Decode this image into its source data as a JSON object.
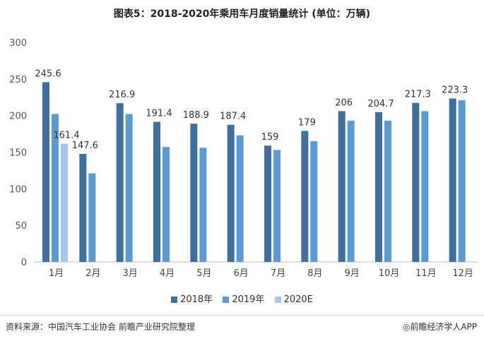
{
  "title": "图表5：2018-2020年乘用车月度销量统计 (单位：万辆)",
  "source": "资料来源：中国汽车工业协会 前瞻产业研究院整理",
  "brand": "◎前瞻经济学人APP",
  "chart_data": {
    "type": "bar",
    "categories": [
      "1月",
      "2月",
      "3月",
      "4月",
      "5月",
      "6月",
      "7月",
      "8月",
      "9月",
      "10月",
      "11月",
      "12月"
    ],
    "series": [
      {
        "name": "2018年",
        "color": "#3f6f9c",
        "values": [
          245.6,
          147.6,
          216.9,
          191.4,
          188.9,
          187.4,
          159,
          179,
          206,
          204.7,
          217.3,
          223.3
        ],
        "labels": [
          "245.6",
          "147.6",
          "216.9",
          "191.4",
          "188.9",
          "187.4",
          "159",
          "179",
          "206",
          "204.7",
          "217.3",
          "223.3"
        ]
      },
      {
        "name": "2019年",
        "color": "#5b9bd5",
        "values": [
          202,
          121,
          202,
          157,
          156,
          173,
          153,
          165,
          193,
          193,
          206,
          221
        ]
      },
      {
        "name": "2020E",
        "color": "#a9c6e8",
        "values": [
          161.4,
          null,
          null,
          null,
          null,
          null,
          null,
          null,
          null,
          null,
          null,
          null
        ],
        "labels": [
          "161.4",
          "",
          "",
          "",
          "",
          "",
          "",
          "",
          "",
          "",
          "",
          ""
        ]
      }
    ],
    "ylim": [
      0,
      300
    ],
    "yticks": [
      "0",
      "50",
      "100",
      "150",
      "200",
      "250",
      "300"
    ],
    "grid": false,
    "legend_position": "bottom"
  }
}
